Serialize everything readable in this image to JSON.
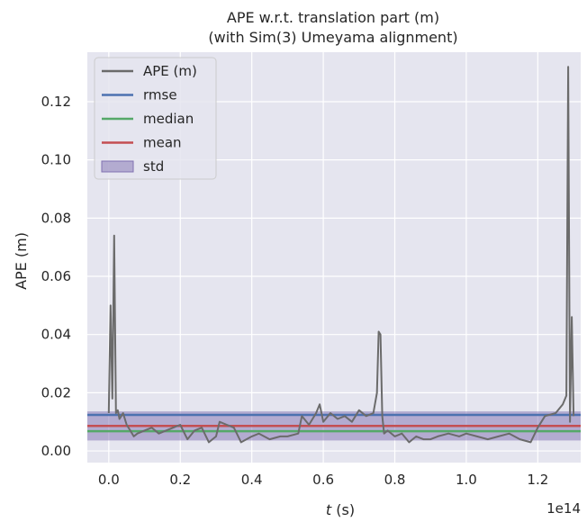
{
  "chart_data": {
    "type": "line",
    "title_line1": "APE w.r.t. translation part (m)",
    "title_line2": "(with Sim(3) Umeyama alignment)",
    "xlabel_var": "t",
    "xlabel_unit": " (s)",
    "ylabel": "APE (m)",
    "x_multiplier": "1e14",
    "xlim": [
      -0.06,
      1.32
    ],
    "ylim": [
      -0.004,
      0.137
    ],
    "xticks": [
      0.0,
      0.2,
      0.4,
      0.6,
      0.8,
      1.0,
      1.2
    ],
    "xtick_labels": [
      "0.0",
      "0.2",
      "0.4",
      "0.6",
      "0.8",
      "1.0",
      "1.2"
    ],
    "yticks": [
      0.0,
      0.02,
      0.04,
      0.06,
      0.08,
      0.1,
      0.12
    ],
    "ytick_labels": [
      "0.00",
      "0.02",
      "0.04",
      "0.06",
      "0.08",
      "0.10",
      "0.12"
    ],
    "grid": true,
    "legend_position": "top-left",
    "background": "#e5e5ef",
    "series": [
      {
        "name": "APE (m)",
        "color": "#6b6b6b",
        "x": [
          0.0,
          0.005,
          0.01,
          0.015,
          0.02,
          0.025,
          0.03,
          0.035,
          0.04,
          0.05,
          0.06,
          0.07,
          0.08,
          0.1,
          0.12,
          0.14,
          0.16,
          0.18,
          0.2,
          0.22,
          0.24,
          0.26,
          0.28,
          0.3,
          0.31,
          0.33,
          0.35,
          0.37,
          0.4,
          0.42,
          0.45,
          0.48,
          0.5,
          0.53,
          0.54,
          0.56,
          0.58,
          0.59,
          0.6,
          0.62,
          0.64,
          0.66,
          0.68,
          0.7,
          0.72,
          0.74,
          0.75,
          0.755,
          0.76,
          0.765,
          0.77,
          0.78,
          0.8,
          0.82,
          0.84,
          0.86,
          0.88,
          0.9,
          0.92,
          0.95,
          0.98,
          1.0,
          1.03,
          1.06,
          1.09,
          1.12,
          1.15,
          1.18,
          1.2,
          1.22,
          1.25,
          1.27,
          1.28,
          1.285,
          1.29,
          1.295,
          1.3
        ],
        "values": [
          0.013,
          0.05,
          0.018,
          0.074,
          0.013,
          0.014,
          0.011,
          0.012,
          0.013,
          0.009,
          0.007,
          0.005,
          0.006,
          0.007,
          0.008,
          0.006,
          0.007,
          0.008,
          0.009,
          0.004,
          0.007,
          0.008,
          0.003,
          0.005,
          0.01,
          0.009,
          0.008,
          0.003,
          0.005,
          0.006,
          0.004,
          0.005,
          0.005,
          0.006,
          0.012,
          0.009,
          0.013,
          0.016,
          0.01,
          0.013,
          0.011,
          0.012,
          0.01,
          0.014,
          0.012,
          0.013,
          0.02,
          0.041,
          0.04,
          0.012,
          0.006,
          0.007,
          0.005,
          0.006,
          0.003,
          0.005,
          0.004,
          0.004,
          0.005,
          0.006,
          0.005,
          0.006,
          0.005,
          0.004,
          0.005,
          0.006,
          0.004,
          0.003,
          0.008,
          0.012,
          0.013,
          0.016,
          0.019,
          0.132,
          0.01,
          0.046,
          0.012
        ]
      }
    ],
    "stats": [
      {
        "name": "rmse",
        "value": 0.0124,
        "color": "#4c72b0"
      },
      {
        "name": "median",
        "value": 0.0068,
        "color": "#55a868"
      },
      {
        "name": "mean",
        "value": 0.0086,
        "color": "#c44e52"
      }
    ],
    "std_band": {
      "name": "std",
      "low": 0.0036,
      "high": 0.0136,
      "color": "#8172b2"
    }
  }
}
